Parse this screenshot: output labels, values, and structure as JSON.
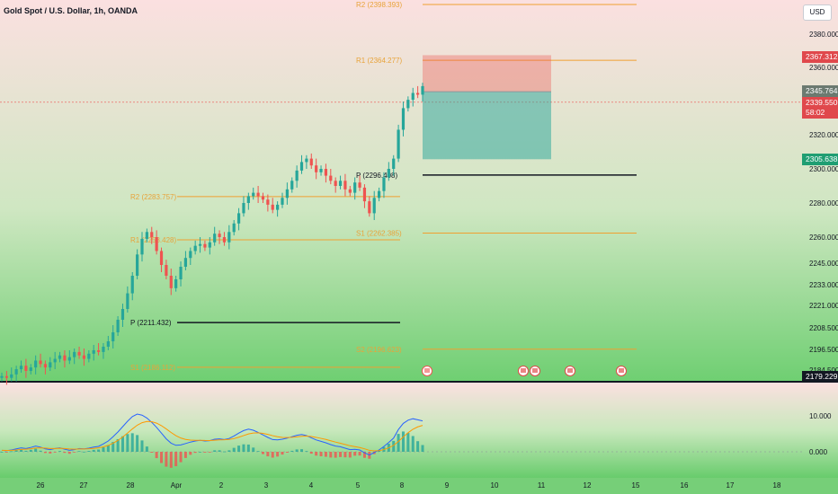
{
  "header": {
    "title": "Gold Spot / U.S. Dollar, 1h, OANDA",
    "currency": "USD"
  },
  "badges": {
    "alert_price": "2367.312",
    "last_price": "2345.764",
    "current_price": "2339.550",
    "countdown": "58:02",
    "target_price": "2305.638",
    "low_price": "2179.229"
  },
  "colors": {
    "up": "#26a69a",
    "down": "#ef5350",
    "pivot_line": "#f0a030",
    "pivot_label": "#e8a33a",
    "macd_line": "#2962ff",
    "signal_line": "#ff9800"
  },
  "chart_data": {
    "type": "candlestick",
    "y_axis_ticks": [
      "2380.000",
      "2360.000",
      "2340.000",
      "2320.000",
      "2300.000",
      "2280.000",
      "2260.000",
      "2245.000",
      "2233.000",
      "2221.000",
      "2208.500",
      "2196.500",
      "2184.500"
    ],
    "x_axis_ticks": [
      "26",
      "27",
      "28",
      "Apr",
      "2",
      "3",
      "4",
      "5",
      "8",
      "9",
      "10",
      "11",
      "12",
      "15",
      "16",
      "17",
      "18"
    ],
    "pivot_levels": [
      {
        "label": "R2 (2398.393)",
        "value": 2398.393
      },
      {
        "label": "R1 (2364.277)",
        "value": 2364.277
      },
      {
        "label": "P (2296.408)",
        "value": 2296.408
      },
      {
        "label": "S1 (2262.385)",
        "value": 2262.385
      },
      {
        "label": "S2 (2196.623)",
        "value": 2196.623
      },
      {
        "label": "R2 (2283.757)",
        "value": 2283.757
      },
      {
        "label": "R1 (2258.428)",
        "value": 2258.428
      },
      {
        "label": "P (2211.432)",
        "value": 2211.432
      },
      {
        "label": "S1 (2186.112)",
        "value": 2186.112
      }
    ],
    "position": {
      "entry": 2345.764,
      "stop": 2367.312,
      "target": 2305.638
    },
    "price_series": [
      2181,
      2180,
      2182,
      2185,
      2187,
      2184,
      2186,
      2190,
      2188,
      2186,
      2189,
      2191,
      2193,
      2190,
      2192,
      2195,
      2193,
      2191,
      2194,
      2196,
      2195,
      2198,
      2201,
      2206,
      2213,
      2219,
      2228,
      2238,
      2250,
      2259,
      2263,
      2260,
      2252,
      2244,
      2238,
      2231,
      2236,
      2243,
      2248,
      2252,
      2255,
      2256,
      2254,
      2257,
      2262,
      2260,
      2257,
      2263,
      2268,
      2274,
      2280,
      2284,
      2286,
      2284,
      2282,
      2279,
      2276,
      2279,
      2283,
      2288,
      2293,
      2299,
      2304,
      2306,
      2302,
      2298,
      2300,
      2296,
      2293,
      2290,
      2293,
      2288,
      2286,
      2292,
      2289,
      2281,
      2274,
      2283,
      2287,
      2295,
      2300,
      2306,
      2323,
      2336,
      2341,
      2345,
      2344,
      2349
    ],
    "macd_values": [
      0.4,
      0.3,
      0.5,
      0.8,
      1.1,
      0.9,
      1.2,
      1.6,
      1.3,
      0.8,
      0.6,
      0.9,
      1.1,
      0.7,
      0.4,
      0.6,
      0.9,
      0.8,
      1.0,
      1.3,
      1.5,
      2.2,
      3.0,
      4.2,
      5.5,
      7.0,
      8.5,
      9.8,
      10.5,
      10.2,
      9.4,
      8.2,
      6.8,
      5.2,
      3.6,
      2.4,
      1.8,
      1.9,
      2.3,
      2.7,
      3.0,
      3.2,
      3.0,
      3.1,
      3.5,
      3.6,
      3.4,
      3.7,
      4.4,
      5.2,
      5.9,
      6.3,
      6.0,
      5.4,
      4.7,
      4.0,
      3.4,
      3.3,
      3.5,
      3.8,
      4.2,
      4.6,
      4.8,
      4.5,
      3.9,
      3.3,
      2.9,
      2.5,
      2.0,
      1.6,
      1.4,
      1.0,
      0.6,
      0.7,
      0.5,
      -0.3,
      -0.9,
      -0.2,
      0.5,
      1.5,
      2.6,
      3.8,
      6.2,
      7.9,
      8.8,
      9.2,
      8.9,
      8.6
    ]
  }
}
